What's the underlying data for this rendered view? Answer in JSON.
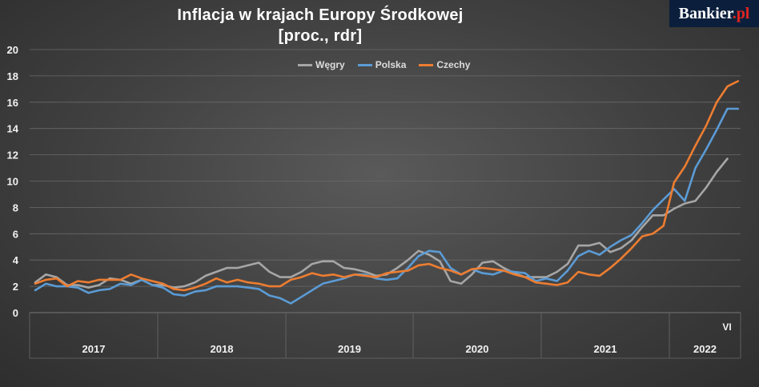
{
  "header": {
    "title_line1": "Inflacja w krajach Europy Środkowej",
    "title_line2": "[proc., rdr]"
  },
  "brand": {
    "logo_text": "Bankier",
    "logo_suffix": ".pl"
  },
  "colors": {
    "Węgry": "#a6a6a6",
    "Polska": "#5b9bd5",
    "Czechy": "#ed7d31",
    "grid": "#6a6a6a",
    "text": "#f2f2f2"
  },
  "chart_data": {
    "type": "line",
    "title": "Inflacja w krajach Europy Środkowej [proc., rdr]",
    "xlabel": "",
    "ylabel": "",
    "ylim": [
      0,
      20
    ],
    "yticks": [
      0,
      2,
      4,
      6,
      8,
      10,
      12,
      14,
      16,
      18,
      20
    ],
    "grid": true,
    "legend_position": "top-center",
    "year_labels": [
      "2017",
      "2018",
      "2019",
      "2020",
      "2021",
      "2022"
    ],
    "month_marker": "VI",
    "series": [
      {
        "name": "Węgry",
        "start": "2017-01",
        "values": [
          2.3,
          2.9,
          2.7,
          2.1,
          2.1,
          1.9,
          2.1,
          2.6,
          2.5,
          2.2,
          2.5,
          2.1,
          2.1,
          1.9,
          2.0,
          2.3,
          2.8,
          3.1,
          3.4,
          3.4,
          3.6,
          3.8,
          3.1,
          2.7,
          2.7,
          3.1,
          3.7,
          3.9,
          3.9,
          3.4,
          3.3,
          3.1,
          2.8,
          2.9,
          3.4,
          4.0,
          4.7,
          4.4,
          3.9,
          2.4,
          2.2,
          2.9,
          3.8,
          3.9,
          3.4,
          3.0,
          2.7,
          2.7,
          2.7,
          3.1,
          3.7,
          5.1,
          5.1,
          5.3,
          4.6,
          4.9,
          5.5,
          6.5,
          7.4,
          7.4,
          7.9,
          8.3,
          8.5,
          9.5,
          10.7,
          11.7
        ]
      },
      {
        "name": "Polska",
        "start": "2017-01",
        "values": [
          1.7,
          2.2,
          2.0,
          2.0,
          1.9,
          1.5,
          1.7,
          1.8,
          2.2,
          2.1,
          2.5,
          2.1,
          1.9,
          1.4,
          1.3,
          1.6,
          1.7,
          2.0,
          2.0,
          2.0,
          1.9,
          1.8,
          1.3,
          1.1,
          0.7,
          1.2,
          1.7,
          2.2,
          2.4,
          2.6,
          2.9,
          2.9,
          2.6,
          2.5,
          2.6,
          3.4,
          4.3,
          4.7,
          4.6,
          3.4,
          2.9,
          3.3,
          3.0,
          2.9,
          3.2,
          3.1,
          3.0,
          2.4,
          2.6,
          2.4,
          3.2,
          4.3,
          4.7,
          4.4,
          5.0,
          5.5,
          5.9,
          6.8,
          7.8,
          8.6,
          9.4,
          8.5,
          11.0,
          12.4,
          13.9,
          15.5,
          15.5
        ]
      },
      {
        "name": "Czechy",
        "start": "2017-01",
        "values": [
          2.2,
          2.5,
          2.6,
          2.0,
          2.4,
          2.3,
          2.5,
          2.5,
          2.5,
          2.9,
          2.6,
          2.4,
          2.2,
          1.8,
          1.7,
          1.9,
          2.2,
          2.6,
          2.3,
          2.5,
          2.3,
          2.2,
          2.0,
          2.0,
          2.5,
          2.7,
          3.0,
          2.8,
          2.9,
          2.7,
          2.9,
          2.8,
          2.7,
          3.0,
          3.1,
          3.2,
          3.6,
          3.7,
          3.4,
          3.2,
          2.9,
          3.3,
          3.4,
          3.3,
          3.2,
          2.9,
          2.7,
          2.3,
          2.2,
          2.1,
          2.3,
          3.1,
          2.9,
          2.8,
          3.4,
          4.1,
          4.9,
          5.8,
          6.0,
          6.6,
          9.9,
          11.1,
          12.7,
          14.2,
          16.0,
          17.2,
          17.6
        ]
      }
    ]
  }
}
